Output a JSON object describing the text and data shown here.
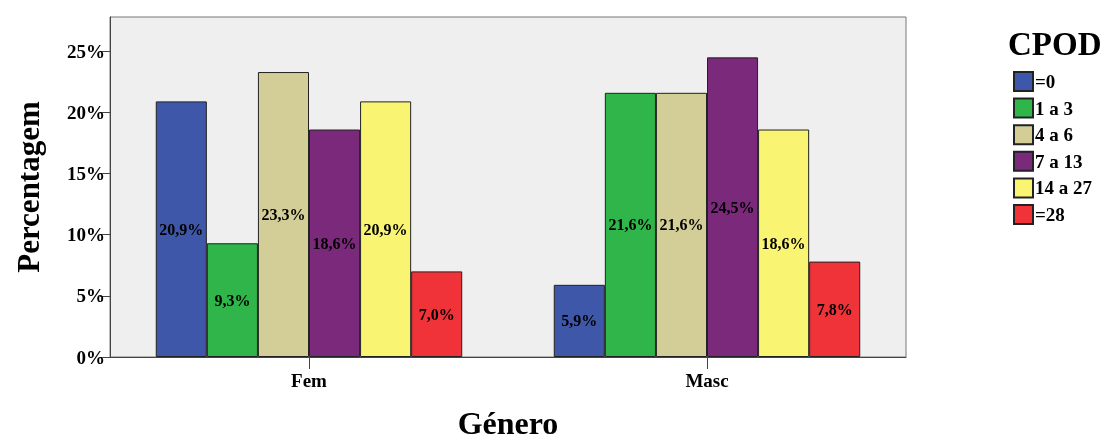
{
  "chart_data": {
    "type": "bar",
    "xlabel": "Género",
    "ylabel": "Percentagem",
    "legend_title": "CPOD",
    "legend": "top right",
    "categories": [
      "Fem",
      "Masc"
    ],
    "series": [
      {
        "name": "=0",
        "color": "#3f57a8",
        "values": [
          20.9,
          5.9
        ],
        "value_labels": [
          "20,9%",
          "5,9%"
        ]
      },
      {
        "name": "1 a 3",
        "color": "#30b54a",
        "values": [
          9.3,
          21.6
        ],
        "value_labels": [
          "9,3%",
          "21,6%"
        ]
      },
      {
        "name": "4 a 6",
        "color": "#d3ce97",
        "values": [
          23.3,
          21.6
        ],
        "value_labels": [
          "23,3%",
          "21,6%"
        ]
      },
      {
        "name": "7 a 13",
        "color": "#7b2a7b",
        "values": [
          18.6,
          24.5
        ],
        "value_labels": [
          "18,6%",
          "24,5%"
        ]
      },
      {
        "name": "14 a 27",
        "color": "#f9f572",
        "values": [
          20.9,
          18.6
        ],
        "value_labels": [
          "20,9%",
          "18,6%"
        ]
      },
      {
        "name": "=28",
        "color": "#ef3338",
        "values": [
          7.0,
          7.8
        ],
        "value_labels": [
          "7,0%",
          "7,8%"
        ]
      }
    ],
    "ylim": [
      0,
      27.8
    ],
    "yticks": [
      {
        "value": 0,
        "label": "0%"
      },
      {
        "value": 5,
        "label": "5%"
      },
      {
        "value": 10,
        "label": "10%"
      },
      {
        "value": 15,
        "label": "15%"
      },
      {
        "value": 20,
        "label": "20%"
      },
      {
        "value": 25,
        "label": "25%"
      }
    ]
  }
}
